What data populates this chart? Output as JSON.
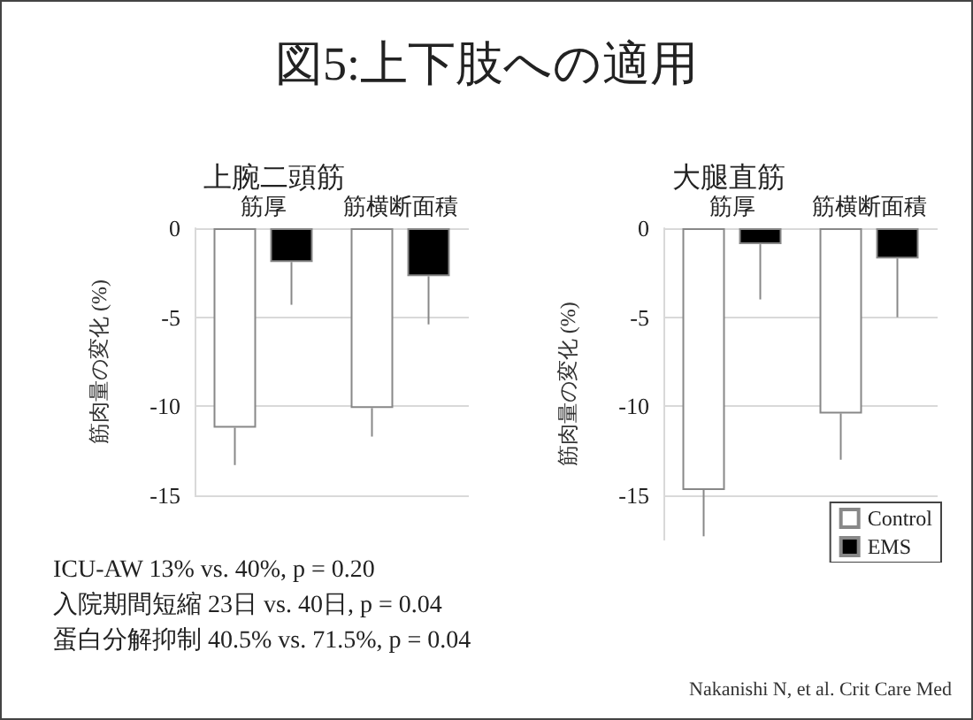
{
  "chart_data": [
    {
      "type": "bar",
      "title": "図5:上下肢への適用",
      "subtitle": "上腕二頭筋",
      "categories": [
        "筋厚",
        "筋横断面積"
      ],
      "ylabel": "筋肉量の変化 (%)",
      "ylim": [
        -15,
        0
      ],
      "yticks": [
        0,
        -5,
        -10,
        -15
      ],
      "grid": "y",
      "legend": false,
      "series": [
        {
          "color": "#ffffff",
          "values": [
            -11.2,
            -10.1
          ],
          "errors": [
            [
              -13.3,
              -11.2
            ],
            [
              -11.7,
              -10.1
            ]
          ]
        },
        {
          "color": "#000000",
          "values": [
            -1.9,
            -2.7
          ],
          "errors": [
            [
              -4.3,
              -1.9
            ],
            [
              -5.4,
              -2.7
            ]
          ]
        }
      ],
      "annotations": [
        "ICU-AW  13% vs. 40%, p = 0.20",
        "入院期間短縮  23日 vs. 40日, p = 0.04",
        "蛋白分解抑制  40.5% vs. 71.5%, p = 0.04"
      ]
    },
    {
      "type": "bar",
      "subtitle": "大腿直筋",
      "categories": [
        "筋厚",
        "筋横断面積"
      ],
      "ylabel": "筋肉量の変化 (%)",
      "ylim": [
        -17.5,
        0
      ],
      "yticks": [
        0,
        -5,
        -10,
        -15
      ],
      "grid": "y",
      "legend": "bottom right",
      "series": [
        {
          "name": "Control",
          "color": "#ffffff",
          "values": [
            -14.7,
            -10.4
          ],
          "errors": [
            [
              -17.3,
              -14.7
            ],
            [
              -13.0,
              -10.4
            ]
          ]
        },
        {
          "name": "EMS",
          "color": "#000000",
          "values": [
            -0.9,
            -1.7
          ],
          "errors": [
            [
              -4.0,
              -0.9
            ],
            [
              -5.0,
              -1.7
            ]
          ]
        }
      ],
      "annotations": [
        "Nakanishi N, et al. Crit Care Med"
      ]
    }
  ]
}
